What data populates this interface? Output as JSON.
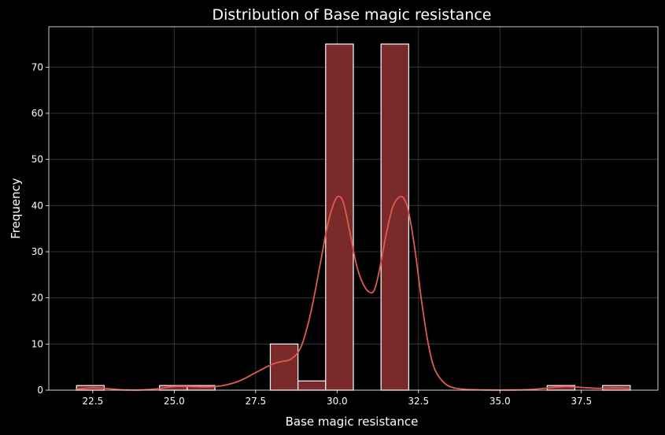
{
  "chart_data": {
    "type": "bar",
    "subtype": "histogram_with_kde",
    "title": "Distribution of Base magic resistance",
    "xlabel": "Base magic resistance",
    "ylabel": "Frequency",
    "xlim": [
      21.15,
      39.85
    ],
    "ylim": [
      0,
      78.75
    ],
    "xticks": [
      22.5,
      25.0,
      27.5,
      30.0,
      32.5,
      35.0,
      37.5
    ],
    "xtick_labels": [
      "22.5",
      "25.0",
      "27.5",
      "30.0",
      "32.5",
      "35.0",
      "37.5"
    ],
    "yticks": [
      0,
      10,
      20,
      30,
      40,
      50,
      60,
      70
    ],
    "ytick_labels": [
      "0",
      "10",
      "20",
      "30",
      "40",
      "50",
      "60",
      "70"
    ],
    "grid": true,
    "bins": [
      {
        "start": 22.0,
        "end": 22.85,
        "count": 1
      },
      {
        "start": 22.85,
        "end": 23.7,
        "count": 0
      },
      {
        "start": 23.7,
        "end": 24.55,
        "count": 0
      },
      {
        "start": 24.55,
        "end": 25.4,
        "count": 1
      },
      {
        "start": 25.4,
        "end": 26.25,
        "count": 1
      },
      {
        "start": 26.25,
        "end": 27.1,
        "count": 0
      },
      {
        "start": 27.1,
        "end": 27.95,
        "count": 0
      },
      {
        "start": 27.95,
        "end": 28.8,
        "count": 10
      },
      {
        "start": 28.8,
        "end": 29.65,
        "count": 2
      },
      {
        "start": 29.65,
        "end": 30.5,
        "count": 75
      },
      {
        "start": 30.5,
        "end": 31.35,
        "count": 0
      },
      {
        "start": 31.35,
        "end": 32.2,
        "count": 75
      },
      {
        "start": 32.2,
        "end": 33.05,
        "count": 0
      },
      {
        "start": 33.05,
        "end": 33.9,
        "count": 0
      },
      {
        "start": 33.9,
        "end": 34.75,
        "count": 0
      },
      {
        "start": 34.75,
        "end": 35.6,
        "count": 0
      },
      {
        "start": 35.6,
        "end": 36.45,
        "count": 0
      },
      {
        "start": 36.45,
        "end": 37.3,
        "count": 1
      },
      {
        "start": 37.3,
        "end": 38.15,
        "count": 0
      },
      {
        "start": 38.15,
        "end": 39.0,
        "count": 1
      }
    ],
    "kde": {
      "x": [
        22.0,
        22.5,
        23.0,
        23.5,
        24.0,
        24.5,
        25.0,
        25.5,
        26.0,
        26.5,
        27.0,
        27.5,
        28.0,
        28.3,
        28.6,
        28.9,
        29.2,
        29.5,
        29.7,
        29.9,
        30.05,
        30.2,
        30.4,
        30.6,
        30.8,
        31.0,
        31.15,
        31.3,
        31.5,
        31.7,
        31.9,
        32.05,
        32.2,
        32.4,
        32.6,
        32.8,
        33.0,
        33.3,
        33.6,
        34.0,
        34.5,
        35.0,
        35.5,
        36.0,
        36.5,
        37.0,
        37.5,
        38.0,
        38.5,
        39.0
      ],
      "y": [
        0.2,
        0.5,
        0.3,
        0.05,
        0.05,
        0.3,
        0.8,
        0.8,
        0.7,
        1.0,
        2.0,
        3.8,
        5.6,
        6.2,
        6.8,
        9.5,
        17.0,
        28.0,
        35.5,
        40.5,
        42.0,
        40.5,
        34.0,
        27.0,
        23.0,
        21.2,
        21.8,
        26.0,
        33.5,
        39.5,
        41.8,
        41.5,
        38.5,
        30.0,
        19.0,
        10.0,
        4.5,
        1.5,
        0.5,
        0.15,
        0.05,
        0.02,
        0.05,
        0.15,
        0.5,
        0.8,
        0.6,
        0.4,
        0.5,
        0.4
      ]
    },
    "colors": {
      "bar_fill": "#7a2a2a",
      "bar_edge": "#ffffff",
      "kde_line": "#e05a4e",
      "grid": "#3e3e3e",
      "axes_edge": "#ffffff",
      "background": "#000000"
    }
  }
}
